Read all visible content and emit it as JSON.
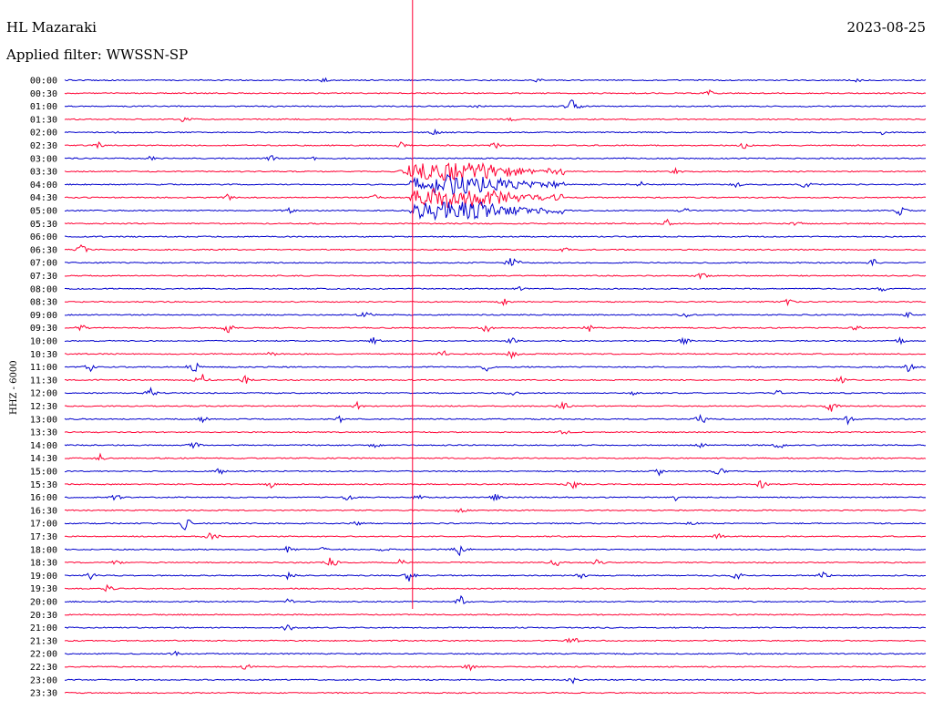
{
  "header": {
    "station": "HL Mazaraki",
    "date": "2023-08-25",
    "filter": "Applied filter: WWSSN-SP",
    "channel": "HHZ - 6000"
  },
  "colors": {
    "trace_even": "#0000cc",
    "trace_odd": "#ff0033"
  },
  "chart_data": {
    "type": "line",
    "title": "HL Mazaraki",
    "subtitle": "Applied filter: WWSSN-SP",
    "ylabel": "HHZ - 6000",
    "xlabel": "",
    "grid": false,
    "rows": [
      "00:00",
      "00:30",
      "01:00",
      "01:30",
      "02:00",
      "02:30",
      "03:00",
      "03:30",
      "04:00",
      "04:30",
      "05:00",
      "05:30",
      "06:00",
      "06:30",
      "07:00",
      "07:30",
      "08:00",
      "08:30",
      "09:00",
      "09:30",
      "10:00",
      "10:30",
      "11:00",
      "11:30",
      "12:00",
      "12:30",
      "13:00",
      "13:30",
      "14:00",
      "14:30",
      "15:00",
      "15:30",
      "16:00",
      "16:30",
      "17:00",
      "17:30",
      "18:00",
      "18:30",
      "19:00",
      "19:30",
      "20:00",
      "20:30",
      "21:00",
      "21:30",
      "22:00",
      "22:30",
      "23:00",
      "23:30"
    ],
    "large_event": {
      "row": "03:30",
      "start_fraction": 0.4
    },
    "bursts": [
      {
        "row": "00:00",
        "pos": 0.3,
        "amp": 4
      },
      {
        "row": "00:00",
        "pos": 0.55,
        "amp": 3
      },
      {
        "row": "00:00",
        "pos": 0.92,
        "amp": 3
      },
      {
        "row": "00:30",
        "pos": 0.75,
        "amp": 4
      },
      {
        "row": "01:00",
        "pos": 0.59,
        "amp": 10
      },
      {
        "row": "01:00",
        "pos": 0.48,
        "amp": 3
      },
      {
        "row": "01:30",
        "pos": 0.14,
        "amp": 5
      },
      {
        "row": "01:30",
        "pos": 0.52,
        "amp": 3
      },
      {
        "row": "02:00",
        "pos": 0.06,
        "amp": 3
      },
      {
        "row": "02:00",
        "pos": 0.43,
        "amp": 4
      },
      {
        "row": "02:00",
        "pos": 0.95,
        "amp": 3
      },
      {
        "row": "02:30",
        "pos": 0.04,
        "amp": 4
      },
      {
        "row": "02:30",
        "pos": 0.39,
        "amp": 4
      },
      {
        "row": "02:30",
        "pos": 0.5,
        "amp": 4
      },
      {
        "row": "02:30",
        "pos": 0.79,
        "amp": 5
      },
      {
        "row": "03:00",
        "pos": 0.1,
        "amp": 4
      },
      {
        "row": "03:00",
        "pos": 0.24,
        "amp": 4
      },
      {
        "row": "03:00",
        "pos": 0.29,
        "amp": 3
      },
      {
        "row": "03:30",
        "pos": 0.4,
        "amp": 10
      },
      {
        "row": "03:30",
        "pos": 0.56,
        "amp": 5
      },
      {
        "row": "03:30",
        "pos": 0.71,
        "amp": 4
      },
      {
        "row": "04:00",
        "pos": 0.67,
        "amp": 4
      },
      {
        "row": "04:00",
        "pos": 0.78,
        "amp": 4
      },
      {
        "row": "04:00",
        "pos": 0.86,
        "amp": 5
      },
      {
        "row": "04:30",
        "pos": 0.19,
        "amp": 5
      },
      {
        "row": "04:30",
        "pos": 0.36,
        "amp": 4
      },
      {
        "row": "05:00",
        "pos": 0.26,
        "amp": 5
      },
      {
        "row": "05:00",
        "pos": 0.72,
        "amp": 5
      },
      {
        "row": "05:00",
        "pos": 0.97,
        "amp": 6
      },
      {
        "row": "05:30",
        "pos": 0.7,
        "amp": 5
      },
      {
        "row": "05:30",
        "pos": 0.85,
        "amp": 4
      },
      {
        "row": "06:30",
        "pos": 0.02,
        "amp": 6
      },
      {
        "row": "06:30",
        "pos": 0.58,
        "amp": 4
      },
      {
        "row": "07:00",
        "pos": 0.52,
        "amp": 10
      },
      {
        "row": "07:00",
        "pos": 0.94,
        "amp": 5
      },
      {
        "row": "07:30",
        "pos": 0.74,
        "amp": 5
      },
      {
        "row": "08:00",
        "pos": 0.53,
        "amp": 5
      },
      {
        "row": "08:00",
        "pos": 0.95,
        "amp": 4
      },
      {
        "row": "08:30",
        "pos": 0.51,
        "amp": 4
      },
      {
        "row": "08:30",
        "pos": 0.84,
        "amp": 4
      },
      {
        "row": "09:00",
        "pos": 0.35,
        "amp": 8
      },
      {
        "row": "09:00",
        "pos": 0.72,
        "amp": 4
      },
      {
        "row": "09:00",
        "pos": 0.98,
        "amp": 4
      },
      {
        "row": "09:30",
        "pos": 0.02,
        "amp": 5
      },
      {
        "row": "09:30",
        "pos": 0.19,
        "amp": 6
      },
      {
        "row": "09:30",
        "pos": 0.49,
        "amp": 6
      },
      {
        "row": "09:30",
        "pos": 0.61,
        "amp": 5
      },
      {
        "row": "09:30",
        "pos": 0.92,
        "amp": 5
      },
      {
        "row": "10:00",
        "pos": 0.36,
        "amp": 5
      },
      {
        "row": "10:00",
        "pos": 0.52,
        "amp": 4
      },
      {
        "row": "10:00",
        "pos": 0.72,
        "amp": 5
      },
      {
        "row": "10:00",
        "pos": 0.97,
        "amp": 4
      },
      {
        "row": "10:30",
        "pos": 0.24,
        "amp": 5
      },
      {
        "row": "10:30",
        "pos": 0.44,
        "amp": 5
      },
      {
        "row": "10:30",
        "pos": 0.52,
        "amp": 6
      },
      {
        "row": "11:00",
        "pos": 0.03,
        "amp": 5
      },
      {
        "row": "11:00",
        "pos": 0.15,
        "amp": 8
      },
      {
        "row": "11:00",
        "pos": 0.49,
        "amp": 5
      },
      {
        "row": "11:00",
        "pos": 0.98,
        "amp": 6
      },
      {
        "row": "11:30",
        "pos": 0.16,
        "amp": 9
      },
      {
        "row": "11:30",
        "pos": 0.21,
        "amp": 6
      },
      {
        "row": "11:30",
        "pos": 0.9,
        "amp": 6
      },
      {
        "row": "12:00",
        "pos": 0.1,
        "amp": 6
      },
      {
        "row": "12:00",
        "pos": 0.52,
        "amp": 4
      },
      {
        "row": "12:00",
        "pos": 0.66,
        "amp": 4
      },
      {
        "row": "12:00",
        "pos": 0.83,
        "amp": 5
      },
      {
        "row": "12:30",
        "pos": 0.34,
        "amp": 5
      },
      {
        "row": "12:30",
        "pos": 0.58,
        "amp": 7
      },
      {
        "row": "12:30",
        "pos": 0.89,
        "amp": 7
      },
      {
        "row": "13:00",
        "pos": 0.16,
        "amp": 5
      },
      {
        "row": "13:00",
        "pos": 0.32,
        "amp": 4
      },
      {
        "row": "13:00",
        "pos": 0.74,
        "amp": 7
      },
      {
        "row": "13:00",
        "pos": 0.91,
        "amp": 6
      },
      {
        "row": "13:30",
        "pos": 0.58,
        "amp": 4
      },
      {
        "row": "14:00",
        "pos": 0.15,
        "amp": 5
      },
      {
        "row": "14:00",
        "pos": 0.36,
        "amp": 4
      },
      {
        "row": "14:00",
        "pos": 0.74,
        "amp": 4
      },
      {
        "row": "14:00",
        "pos": 0.83,
        "amp": 5
      },
      {
        "row": "14:30",
        "pos": 0.04,
        "amp": 6
      },
      {
        "row": "15:00",
        "pos": 0.18,
        "amp": 5
      },
      {
        "row": "15:00",
        "pos": 0.69,
        "amp": 5
      },
      {
        "row": "15:00",
        "pos": 0.76,
        "amp": 7
      },
      {
        "row": "15:30",
        "pos": 0.24,
        "amp": 5
      },
      {
        "row": "15:30",
        "pos": 0.59,
        "amp": 7
      },
      {
        "row": "15:30",
        "pos": 0.81,
        "amp": 6
      },
      {
        "row": "16:00",
        "pos": 0.06,
        "amp": 6
      },
      {
        "row": "16:00",
        "pos": 0.33,
        "amp": 5
      },
      {
        "row": "16:00",
        "pos": 0.41,
        "amp": 4
      },
      {
        "row": "16:00",
        "pos": 0.5,
        "amp": 5
      },
      {
        "row": "16:00",
        "pos": 0.71,
        "amp": 4
      },
      {
        "row": "16:30",
        "pos": 0.46,
        "amp": 4
      },
      {
        "row": "17:00",
        "pos": 0.14,
        "amp": 9
      },
      {
        "row": "17:00",
        "pos": 0.34,
        "amp": 4
      },
      {
        "row": "17:00",
        "pos": 0.73,
        "amp": 4
      },
      {
        "row": "17:30",
        "pos": 0.17,
        "amp": 8
      },
      {
        "row": "17:30",
        "pos": 0.76,
        "amp": 5
      },
      {
        "row": "18:00",
        "pos": 0.26,
        "amp": 5
      },
      {
        "row": "18:00",
        "pos": 0.3,
        "amp": 5
      },
      {
        "row": "18:00",
        "pos": 0.37,
        "amp": 4
      },
      {
        "row": "18:00",
        "pos": 0.46,
        "amp": 10
      },
      {
        "row": "18:30",
        "pos": 0.06,
        "amp": 4
      },
      {
        "row": "18:30",
        "pos": 0.31,
        "amp": 8
      },
      {
        "row": "18:30",
        "pos": 0.39,
        "amp": 5
      },
      {
        "row": "18:30",
        "pos": 0.57,
        "amp": 6
      },
      {
        "row": "18:30",
        "pos": 0.62,
        "amp": 5
      },
      {
        "row": "19:00",
        "pos": 0.03,
        "amp": 5
      },
      {
        "row": "19:00",
        "pos": 0.26,
        "amp": 6
      },
      {
        "row": "19:00",
        "pos": 0.4,
        "amp": 8
      },
      {
        "row": "19:00",
        "pos": 0.6,
        "amp": 4
      },
      {
        "row": "19:00",
        "pos": 0.78,
        "amp": 6
      },
      {
        "row": "19:00",
        "pos": 0.88,
        "amp": 7
      },
      {
        "row": "19:30",
        "pos": 0.05,
        "amp": 5
      },
      {
        "row": "20:00",
        "pos": 0.26,
        "amp": 4
      },
      {
        "row": "20:00",
        "pos": 0.46,
        "amp": 7
      },
      {
        "row": "21:00",
        "pos": 0.26,
        "amp": 6
      },
      {
        "row": "21:30",
        "pos": 0.59,
        "amp": 6
      },
      {
        "row": "22:00",
        "pos": 0.13,
        "amp": 4
      },
      {
        "row": "22:30",
        "pos": 0.21,
        "amp": 5
      },
      {
        "row": "22:30",
        "pos": 0.47,
        "amp": 5
      },
      {
        "row": "23:00",
        "pos": 0.59,
        "amp": 4
      }
    ]
  }
}
